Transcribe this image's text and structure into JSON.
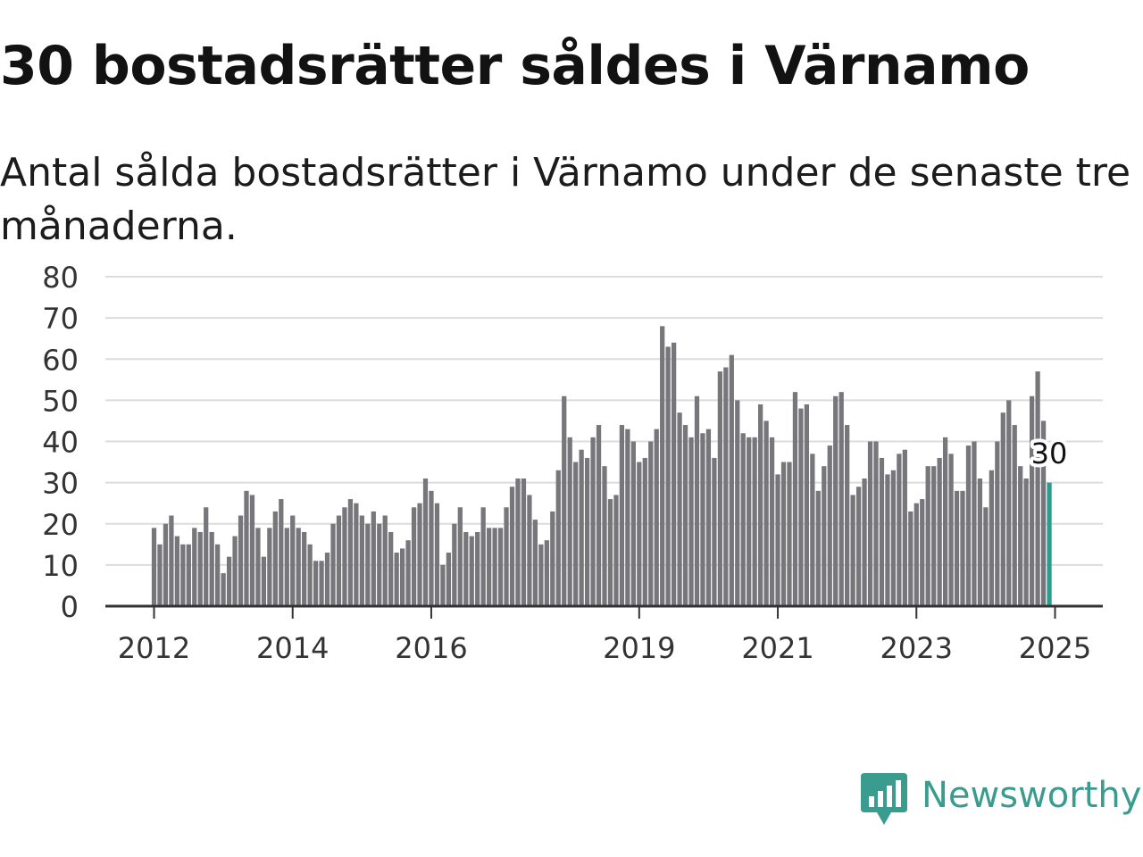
{
  "header": {
    "title": "30 bostadsrätter såldes i Värnamo",
    "subtitle": "Antal sålda bostadsrätter i Värnamo under de senaste tre månaderna."
  },
  "brand": {
    "name": "Newsworthy",
    "icon": "newsworthy-logo-icon",
    "color": "#3a9c8f"
  },
  "chart_data": {
    "type": "bar",
    "xlabel": "",
    "ylabel": "",
    "ylim": [
      0,
      80
    ],
    "yticks": [
      0,
      10,
      20,
      30,
      40,
      50,
      60,
      70,
      80
    ],
    "grid": true,
    "x_start": "2012-01",
    "x_end": "2025-01",
    "xticks": [
      {
        "label": "2012",
        "date": "2012-01"
      },
      {
        "label": "2014",
        "date": "2014-01"
      },
      {
        "label": "2016",
        "date": "2016-01"
      },
      {
        "label": "2019",
        "date": "2019-01"
      },
      {
        "label": "2021",
        "date": "2021-01"
      },
      {
        "label": "2023",
        "date": "2023-01"
      },
      {
        "label": "2025",
        "date": "2025-01"
      }
    ],
    "bar_color": "#77767b",
    "highlight_color": "#2a9d8f",
    "highlight_label": "30",
    "series": [
      {
        "values": [
          19,
          15,
          20,
          22,
          17,
          15,
          15,
          19,
          18,
          24,
          18,
          15,
          8,
          12,
          17,
          22,
          28,
          27,
          19,
          12,
          19,
          23,
          26,
          19,
          22,
          19,
          18,
          15,
          11,
          11,
          13,
          20,
          22,
          24,
          26,
          25,
          22,
          20,
          23,
          20,
          22,
          18,
          13,
          14,
          16,
          24,
          25,
          31,
          28,
          25,
          10,
          13,
          20,
          24,
          18,
          17,
          18,
          24,
          19,
          19,
          19,
          24,
          29,
          31,
          31,
          27,
          21,
          15,
          16,
          23,
          33,
          51,
          41,
          35,
          38,
          36,
          41,
          44,
          34,
          26,
          27,
          44,
          43,
          40,
          35,
          36,
          40,
          43,
          68,
          63,
          64,
          47,
          44,
          41,
          51,
          42,
          43,
          36,
          57,
          58,
          61,
          50,
          42,
          41,
          41,
          49,
          45,
          41,
          32,
          35,
          35,
          52,
          48,
          49,
          37,
          28,
          34,
          39,
          51,
          52,
          44,
          27,
          29,
          31,
          40,
          40,
          36,
          32,
          33,
          37,
          38,
          23,
          25,
          26,
          34,
          34,
          36,
          41,
          37,
          28,
          28,
          39,
          40,
          31,
          24,
          33,
          40,
          47,
          50,
          44,
          34,
          31,
          51,
          57,
          45,
          30
        ]
      }
    ]
  }
}
